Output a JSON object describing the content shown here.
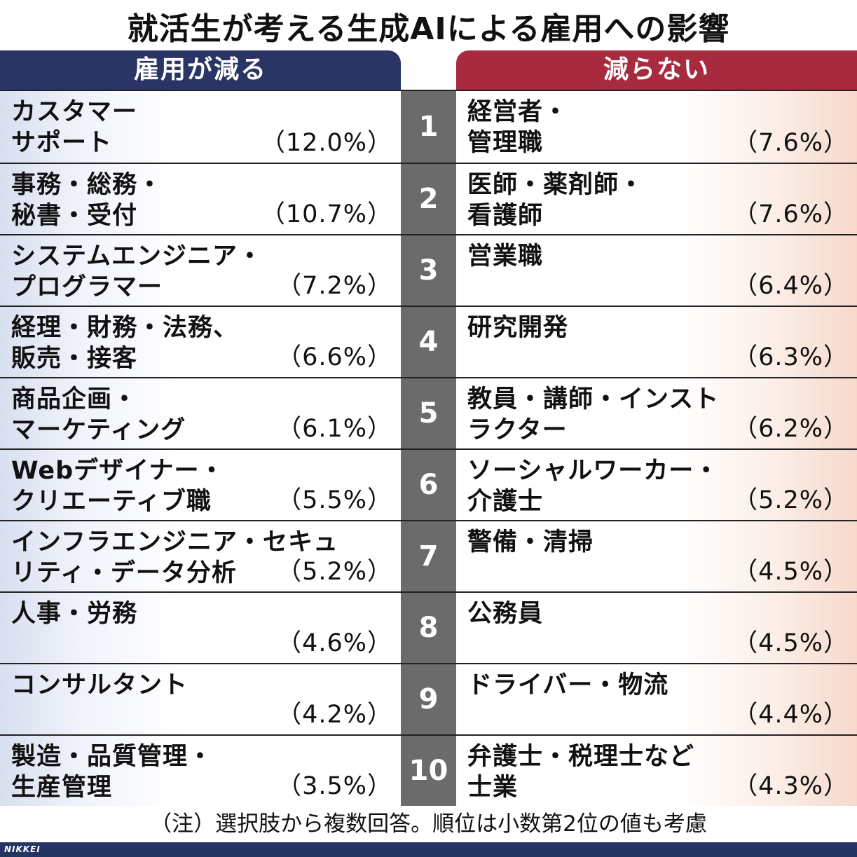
{
  "title": "就活生が考える生成AIによる雇用への影響",
  "headers": {
    "left": "雇用が減る",
    "right": "減らない"
  },
  "chart_data": {
    "type": "table",
    "columns": [
      "雇用が減る",
      "減らない"
    ],
    "rows": [
      {
        "rank": "1",
        "left_job": "カスタマー\nサポート",
        "left_pct": "（12.0%）",
        "right_job": "経営者・\n管理職",
        "right_pct": "（7.6%）",
        "left_value": 12.0,
        "right_value": 7.6
      },
      {
        "rank": "2",
        "left_job": "事務・総務・\n秘書・受付",
        "left_pct": "（10.7%）",
        "right_job": "医師・薬剤師・\n看護師",
        "right_pct": "（7.6%）",
        "left_value": 10.7,
        "right_value": 7.6
      },
      {
        "rank": "3",
        "left_job": "システムエンジニア・\nプログラマー",
        "left_pct": "（7.2%）",
        "right_job": "営業職",
        "right_pct": "（6.4%）",
        "left_value": 7.2,
        "right_value": 6.4
      },
      {
        "rank": "4",
        "left_job": "経理・財務・法務、\n販売・接客",
        "left_pct": "（6.6%）",
        "right_job": "研究開発",
        "right_pct": "（6.3%）",
        "left_value": 6.6,
        "right_value": 6.3
      },
      {
        "rank": "5",
        "left_job": "商品企画・\nマーケティング",
        "left_pct": "（6.1%）",
        "right_job": "教員・講師・インスト\nラクター",
        "right_pct": "（6.2%）",
        "left_value": 6.1,
        "right_value": 6.2
      },
      {
        "rank": "6",
        "left_job": "Webデザイナー・\nクリエーティブ職",
        "left_pct": "（5.5%）",
        "right_job": "ソーシャルワーカー・\n介護士",
        "right_pct": "（5.2%）",
        "left_value": 5.5,
        "right_value": 5.2
      },
      {
        "rank": "7",
        "left_job": "インフラエンジニア・セキュ\nリティ・データ分析",
        "left_pct": "（5.2%）",
        "right_job": "警備・清掃",
        "right_pct": "（4.5%）",
        "left_value": 5.2,
        "right_value": 4.5
      },
      {
        "rank": "8",
        "left_job": "人事・労務",
        "left_pct": "（4.6%）",
        "right_job": "公務員",
        "right_pct": "（4.5%）",
        "left_value": 4.6,
        "right_value": 4.5
      },
      {
        "rank": "9",
        "left_job": "コンサルタント",
        "left_pct": "（4.2%）",
        "right_job": "ドライバー・物流",
        "right_pct": "（4.4%）",
        "left_value": 4.2,
        "right_value": 4.4
      },
      {
        "rank": "10",
        "left_job": "製造・品質管理・\n生産管理",
        "left_pct": "（3.5%）",
        "right_job": "弁護士・税理士など\n士業",
        "right_pct": "（4.3%）",
        "left_value": 3.5,
        "right_value": 4.3
      }
    ],
    "colors": {
      "left_header": "#2a3566",
      "right_header": "#a82a3e",
      "rank_bg": "#6b6b6b"
    }
  },
  "note": "（注）選択肢から複数回答。順位は小数第2位の値も考慮",
  "footer": {
    "logo": "NIKKEI"
  }
}
